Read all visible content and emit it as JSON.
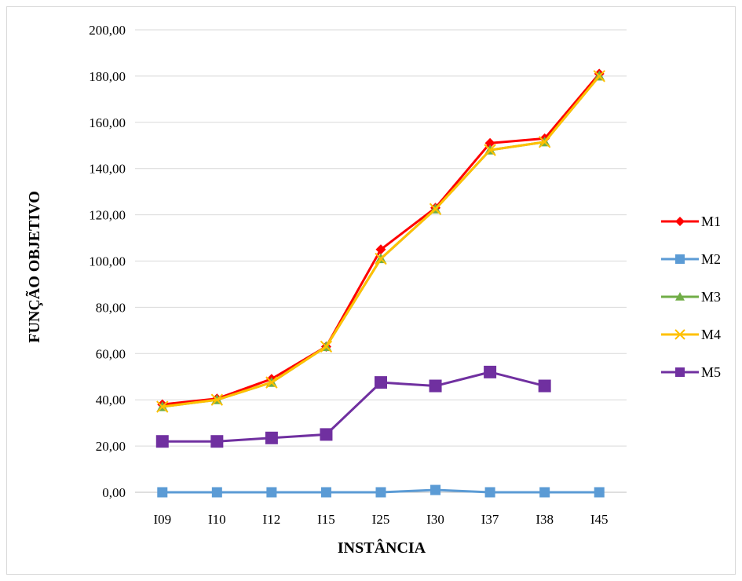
{
  "chart_data": {
    "type": "line",
    "categories": [
      "I09",
      "I10",
      "I12",
      "I15",
      "I25",
      "I30",
      "I37",
      "I38",
      "I45"
    ],
    "xlabel": "INSTÂNCIA",
    "ylabel": "FUNÇÃO OBJETIVO",
    "ylim": [
      0,
      200
    ],
    "yticks": [
      "0,00",
      "20,00",
      "40,00",
      "60,00",
      "80,00",
      "100,00",
      "120,00",
      "140,00",
      "160,00",
      "180,00",
      "200,00"
    ],
    "grid": true,
    "legend_position": "right",
    "series": [
      {
        "name": "M1",
        "color": "#ff0000",
        "marker": "diamond",
        "values": [
          38,
          40.5,
          49,
          63,
          105,
          123,
          151,
          153,
          181
        ]
      },
      {
        "name": "M2",
        "color": "#5b9bd5",
        "marker": "square",
        "values": [
          0,
          0,
          0,
          0,
          0,
          1,
          0,
          0,
          0
        ]
      },
      {
        "name": "M3",
        "color": "#70ad47",
        "marker": "triangle",
        "values": [
          37,
          40,
          47.5,
          63,
          101,
          122.5,
          148,
          151.5,
          180
        ]
      },
      {
        "name": "M4",
        "color": "#ffc000",
        "marker": "x",
        "values": [
          37,
          40,
          47.5,
          63,
          101,
          122.5,
          148,
          151.5,
          180
        ]
      },
      {
        "name": "M5",
        "color": "#7030a0",
        "marker": "square",
        "values": [
          22,
          22,
          23.5,
          25,
          47.5,
          46,
          52,
          46,
          null
        ]
      }
    ]
  }
}
